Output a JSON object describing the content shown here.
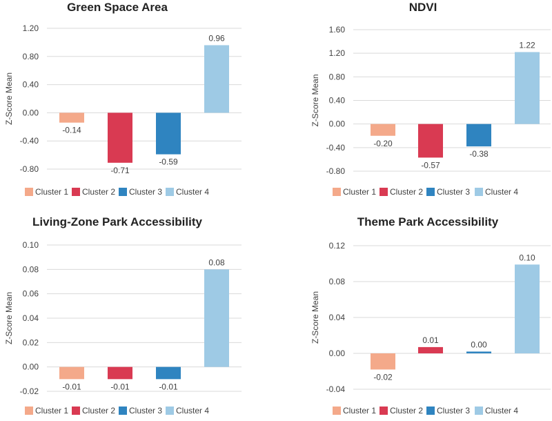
{
  "chart_data": [
    {
      "type": "bar",
      "title": "Green Space Area",
      "ylabel": "Z-Score Mean",
      "categories": [
        "Cluster 1",
        "Cluster 2",
        "Cluster 3",
        "Cluster 4"
      ],
      "values": [
        -0.14,
        -0.71,
        -0.59,
        0.96
      ],
      "value_labels": [
        "-0.14",
        "-0.71",
        "-0.59",
        "0.96"
      ],
      "ylim": [
        -0.8,
        1.2
      ],
      "yticks": [
        -0.8,
        -0.4,
        0.0,
        0.4,
        0.8,
        1.2
      ],
      "ytick_labels": [
        "-0.80",
        "-0.40",
        "0.00",
        "0.40",
        "0.80",
        "1.20"
      ],
      "grid": true,
      "legend": "bottom"
    },
    {
      "type": "bar",
      "title": "NDVI",
      "ylabel": "Z-Score Mean",
      "categories": [
        "Cluster 1",
        "Cluster 2",
        "Cluster 3",
        "Cluster 4"
      ],
      "values": [
        -0.2,
        -0.57,
        -0.38,
        1.22
      ],
      "value_labels": [
        "-0.20",
        "-0.57",
        "-0.38",
        "1.22"
      ],
      "ylim": [
        -0.8,
        1.6
      ],
      "yticks": [
        -0.8,
        -0.4,
        0.0,
        0.4,
        0.8,
        1.2,
        1.6
      ],
      "ytick_labels": [
        "-0.80",
        "-0.40",
        "0.00",
        "0.40",
        "0.80",
        "1.20",
        "1.60"
      ],
      "grid": true,
      "legend": "bottom"
    },
    {
      "type": "bar",
      "title": "Living-Zone Park Accessibility",
      "ylabel": "Z-Score Mean",
      "categories": [
        "Cluster 1",
        "Cluster 2",
        "Cluster 3",
        "Cluster 4"
      ],
      "values": [
        -0.01,
        -0.01,
        -0.01,
        0.08
      ],
      "value_labels": [
        "-0.01",
        "-0.01",
        "-0.01",
        "0.08"
      ],
      "ylim": [
        -0.02,
        0.1
      ],
      "yticks": [
        -0.02,
        0.0,
        0.02,
        0.04,
        0.06,
        0.08,
        0.1
      ],
      "ytick_labels": [
        "-0.02",
        "0.00",
        "0.02",
        "0.04",
        "0.06",
        "0.08",
        "0.10"
      ],
      "grid": true,
      "legend": "bottom"
    },
    {
      "type": "bar",
      "title": "Theme Park Accessibility",
      "ylabel": "Z-Score Mean",
      "categories": [
        "Cluster 1",
        "Cluster 2",
        "Cluster 3",
        "Cluster 4"
      ],
      "values": [
        -0.018,
        0.007,
        0.002,
        0.099
      ],
      "value_labels": [
        "-0.02",
        "0.01",
        "0.00",
        "0.10"
      ],
      "ylim": [
        -0.04,
        0.12
      ],
      "yticks": [
        -0.04,
        0.0,
        0.04,
        0.08,
        0.12
      ],
      "ytick_labels": [
        "-0.04",
        "0.00",
        "0.04",
        "0.08",
        "0.12"
      ],
      "grid": true,
      "legend": "bottom"
    }
  ],
  "colors": {
    "series": [
      "#f4a98a",
      "#d93a52",
      "#2f84c0",
      "#9ecae5"
    ],
    "grid": "#d9d9d9",
    "text": "#404040",
    "title": "#222222"
  }
}
